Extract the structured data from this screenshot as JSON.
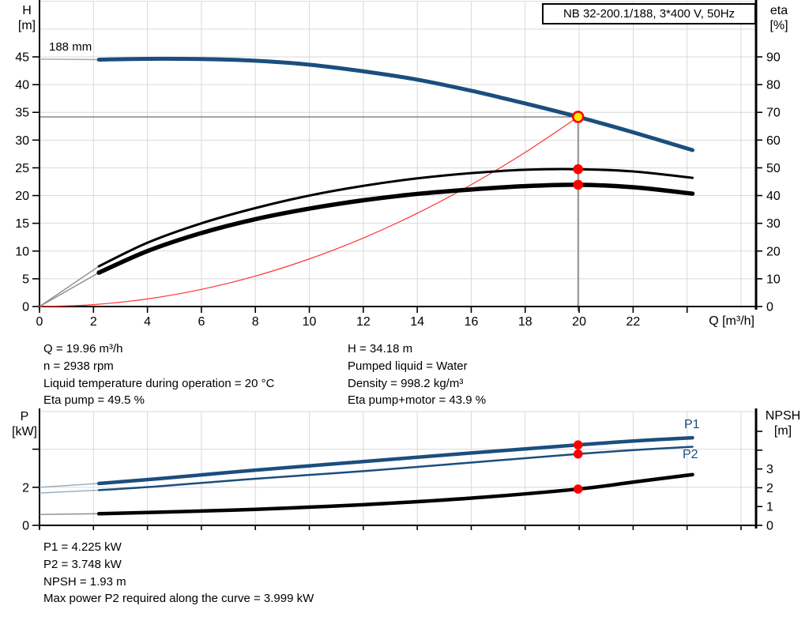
{
  "title_box": {
    "label": "NB 32-200.1/188, 3*400 V, 50Hz"
  },
  "colors": {
    "curve_blue": "#1b4e7e",
    "curve_black": "#000000",
    "system_curve_red": "#ff3333",
    "marker_red": "#ff0000",
    "marker_yellow": "#ffeb00",
    "duty_line_gray": "#6e6e6e",
    "grid_gray": "#d9d9d9",
    "ext_gray": "#8c8c8c",
    "ext_blue": "#93a9bd",
    "axis_black": "#000000",
    "label_blue": "#1b4e7e"
  },
  "axis_labels": {
    "h_line1": "H",
    "h_line2": "[m]",
    "eta_line1": "eta",
    "eta_line2": "[%]",
    "q_label": "Q [m³/h]",
    "p_line1": "P",
    "p_line2": "[kW]",
    "npsh_line1": "NPSH",
    "npsh_line2": "[m]",
    "impeller": "188 mm",
    "p1": "P1",
    "p2": "P2"
  },
  "annotations": {
    "top_left": [
      "Q = 19.96 m³/h",
      "n = 2938 rpm",
      "Liquid temperature during operation = 20 °C",
      "Eta pump = 49.5 %"
    ],
    "top_right": [
      "H = 34.18 m",
      "Pumped liquid = Water",
      "Density = 998.2 kg/m³",
      "Eta pump+motor = 43.9 %"
    ],
    "bottom": [
      "P1 = 4.225 kW",
      "P2 = 3.748 kW",
      "NPSH = 1.93 m",
      "Max power P2 required along the curve = 3.999 kW"
    ]
  },
  "chart_data": [
    {
      "type": "line",
      "name": "head-efficiency-chart",
      "title": "NB 32-200.1/188, 3*400 V, 50Hz",
      "xlabel": "Q [m³/h]",
      "ylabel_left": "H [m]",
      "ylabel_right": "eta [%]",
      "xlim": [
        0,
        26.6
      ],
      "ylim_left": [
        0,
        55
      ],
      "ylim_right": [
        0,
        110
      ],
      "grid": true,
      "x_ticks": [
        0,
        2,
        4,
        6,
        8,
        10,
        12,
        14,
        16,
        18,
        20,
        22
      ],
      "y_left_ticks": [
        0,
        5,
        10,
        15,
        20,
        25,
        30,
        35,
        40,
        45
      ],
      "y_right_ticks": [
        0,
        10,
        20,
        30,
        40,
        50,
        60,
        70,
        80,
        90
      ],
      "curve_label": "188 mm",
      "series": [
        {
          "name": "head-curve",
          "axis": "left",
          "color": "#1b4e7e",
          "width": 5,
          "ext_color": "#93a9bd",
          "split": 2.2,
          "x": [
            0,
            2.2,
            4,
            6,
            8,
            10,
            12,
            14,
            16,
            18,
            19.96,
            22,
            24.2
          ],
          "y": [
            44.6,
            44.5,
            44.65,
            44.6,
            44.3,
            43.6,
            42.4,
            40.9,
            38.9,
            36.6,
            34.18,
            31.4,
            28.2
          ]
        },
        {
          "name": "eta-pump-curve",
          "axis": "right",
          "color": "#000000",
          "width": 3,
          "ext_color": "#8c8c8c",
          "split": 2.2,
          "x": [
            0,
            2.2,
            4,
            6,
            8,
            10,
            12,
            14,
            16,
            18,
            19.96,
            22,
            24.2
          ],
          "y": [
            0,
            14.5,
            23,
            30,
            35.5,
            40,
            43.5,
            46.2,
            48.1,
            49.3,
            49.5,
            48.7,
            46.4
          ]
        },
        {
          "name": "eta-pump-motor-curve",
          "axis": "right",
          "color": "#000000",
          "width": 5.5,
          "ext_color": "#8c8c8c",
          "split": 2.2,
          "x": [
            0,
            2.2,
            4,
            6,
            8,
            10,
            12,
            14,
            16,
            18,
            19.96,
            22,
            24.2
          ],
          "y": [
            0,
            12.2,
            20,
            26.5,
            31.5,
            35.3,
            38.3,
            40.6,
            42.2,
            43.4,
            43.9,
            43.0,
            40.7
          ]
        },
        {
          "name": "system-curve",
          "axis": "left",
          "color": "#ff3333",
          "width": 1.2,
          "ext_color": "#ff3333",
          "split": null,
          "x": [
            0,
            2,
            4,
            6,
            8,
            10,
            12,
            14,
            16,
            18,
            19.96
          ],
          "y": [
            0,
            0.34,
            1.37,
            3.09,
            5.49,
            8.58,
            12.35,
            16.81,
            21.96,
            27.79,
            34.18
          ]
        }
      ],
      "duty_point": {
        "q": 19.96,
        "h": 34.18,
        "eta_pump": 49.5,
        "eta_pump_motor": 43.9
      }
    },
    {
      "type": "line",
      "name": "power-npsh-chart",
      "xlabel": "",
      "ylabel_left": "P [kW]",
      "ylabel_right": "NPSH [m]",
      "xlim": [
        0,
        26.6
      ],
      "ylim_left": [
        0,
        6
      ],
      "ylim_right": [
        0,
        6.2
      ],
      "grid": true,
      "y_left_ticks": [
        0,
        2,
        4
      ],
      "y_left_tick_labels": [
        0,
        2
      ],
      "y_right_ticks": [
        0,
        1,
        2,
        3,
        4,
        5
      ],
      "y_right_tick_labels": [
        0,
        1,
        2,
        3
      ],
      "series": [
        {
          "name": "p1-curve",
          "axis": "left",
          "color": "#1b4e7e",
          "width": 4.5,
          "ext_color": "#93a9bd",
          "split": 2.2,
          "label": "P1",
          "x": [
            0,
            2.2,
            4.4,
            8,
            12,
            16,
            19.96,
            22,
            24.2
          ],
          "y": [
            2.0,
            2.2,
            2.45,
            2.9,
            3.35,
            3.8,
            4.225,
            4.43,
            4.6
          ]
        },
        {
          "name": "p2-curve",
          "axis": "left",
          "color": "#1b4e7e",
          "width": 2.5,
          "ext_color": "#93a9bd",
          "split": 2.2,
          "label": "P2",
          "x": [
            0,
            2.2,
            4.4,
            8,
            12,
            16,
            19.96,
            22,
            24.2
          ],
          "y": [
            1.7,
            1.85,
            2.05,
            2.45,
            2.85,
            3.3,
            3.748,
            3.95,
            4.13
          ]
        },
        {
          "name": "npsh-curve",
          "axis": "right",
          "color": "#000000",
          "width": 4.5,
          "ext_color": "#8c8c8c",
          "split": 2.2,
          "label": "NPSH",
          "x": [
            0,
            2.2,
            4.4,
            8,
            12,
            16,
            19.96,
            22,
            24.2
          ],
          "y": [
            0.58,
            0.62,
            0.7,
            0.85,
            1.1,
            1.45,
            1.93,
            2.3,
            2.7
          ]
        }
      ],
      "duty_point": {
        "q": 19.96,
        "p1": 4.225,
        "p2": 3.748,
        "npsh": 1.93
      }
    }
  ]
}
